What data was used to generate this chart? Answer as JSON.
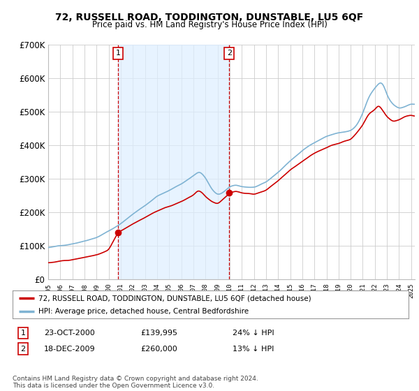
{
  "title": "72, RUSSELL ROAD, TODDINGTON, DUNSTABLE, LU5 6QF",
  "subtitle": "Price paid vs. HM Land Registry's House Price Index (HPI)",
  "legend_line1": "72, RUSSELL ROAD, TODDINGTON, DUNSTABLE, LU5 6QF (detached house)",
  "legend_line2": "HPI: Average price, detached house, Central Bedfordshire",
  "annotation1_label": "1",
  "annotation1_date": "23-OCT-2000",
  "annotation1_price": "£139,995",
  "annotation1_hpi": "24% ↓ HPI",
  "annotation2_label": "2",
  "annotation2_date": "18-DEC-2009",
  "annotation2_price": "£260,000",
  "annotation2_hpi": "13% ↓ HPI",
  "footer": "Contains HM Land Registry data © Crown copyright and database right 2024.\nThis data is licensed under the Open Government Licence v3.0.",
  "ylim": [
    0,
    700000
  ],
  "yticks": [
    0,
    100000,
    200000,
    300000,
    400000,
    500000,
    600000,
    700000
  ],
  "ytick_labels": [
    "£0",
    "£100K",
    "£200K",
    "£300K",
    "£400K",
    "£500K",
    "£600K",
    "£700K"
  ],
  "color_red": "#cc0000",
  "color_blue": "#7fb3d3",
  "color_vline": "#cc0000",
  "color_shade": "#ddeeff",
  "background_color": "#ffffff",
  "grid_color": "#cccccc",
  "sale1_x": 2000.79,
  "sale1_y": 139995,
  "sale2_x": 2009.96,
  "sale2_y": 260000,
  "vline1_x": 2000.79,
  "vline2_x": 2009.96,
  "xlim_left": 1995.0,
  "xlim_right": 2025.3
}
